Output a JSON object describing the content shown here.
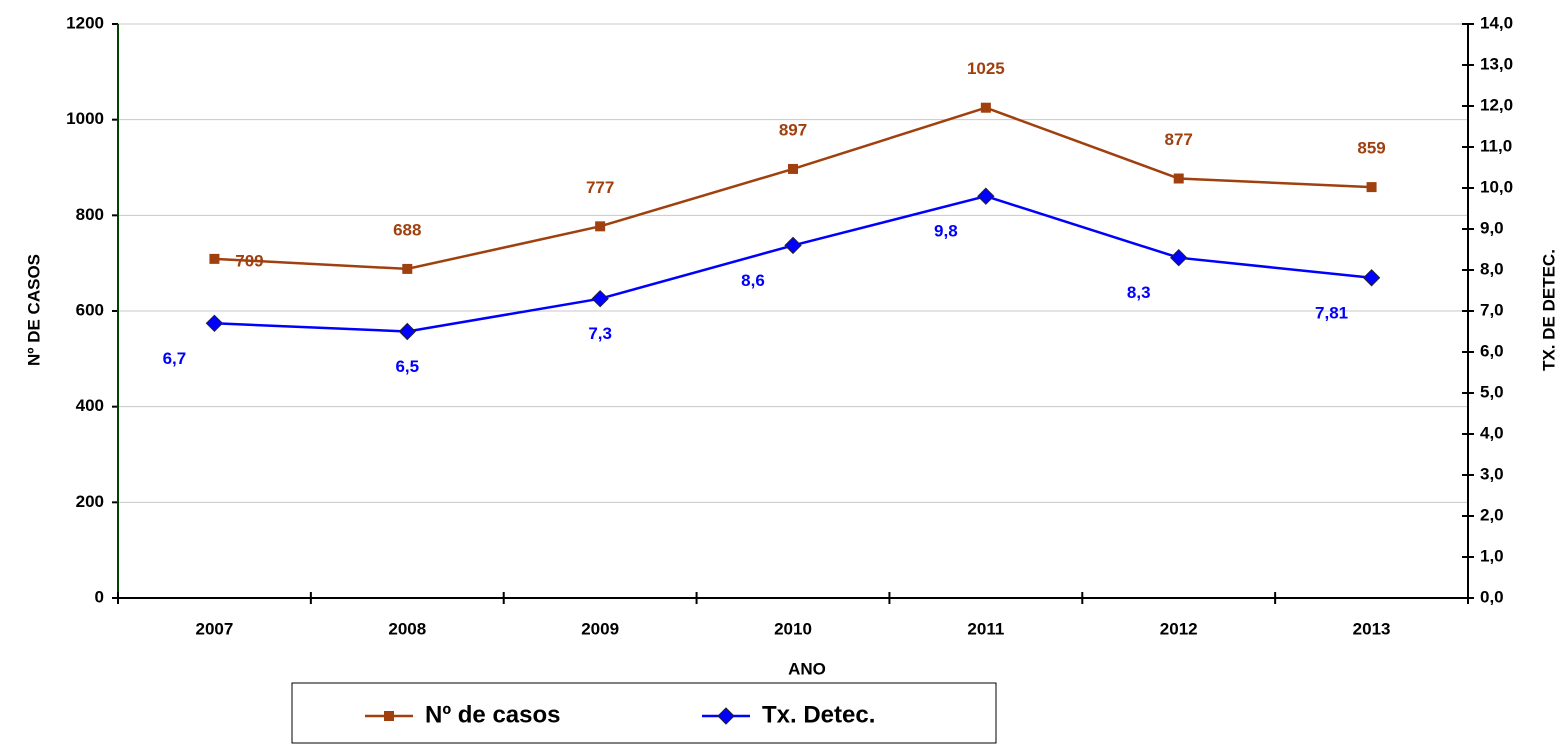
{
  "chart_data": {
    "type": "line",
    "x_label": "ANO",
    "y_label": "Nº DE CASOS",
    "y2_label": "TX. DE DETEC.",
    "categories": [
      "2007",
      "2008",
      "2009",
      "2010",
      "2011",
      "2012",
      "2013"
    ],
    "series": [
      {
        "name": "Nº de casos",
        "color": "#a0400f",
        "values": [
          709,
          688,
          777,
          897,
          1025,
          877,
          859
        ]
      },
      {
        "name": "Tx. Detec.",
        "color": "#0000ff",
        "axis": "y2",
        "values": [
          6.7,
          6.5,
          7.3,
          8.6,
          9.8,
          8.3,
          7.81
        ],
        "value_labels": [
          "6,7",
          "6,5",
          "7,3",
          "8,6",
          "9,8",
          "8,3",
          "7,81"
        ]
      }
    ],
    "ylim": [
      0,
      1200
    ],
    "yticks": [
      0,
      200,
      400,
      600,
      800,
      1000,
      1200
    ],
    "y2lim": [
      0,
      14
    ],
    "y2ticks": [
      {
        "value": 0,
        "label": "0,0"
      },
      {
        "value": 1,
        "label": "1,0"
      },
      {
        "value": 2,
        "label": "2,0"
      },
      {
        "value": 3,
        "label": "3,0"
      },
      {
        "value": 4,
        "label": "4,0"
      },
      {
        "value": 5,
        "label": "5,0"
      },
      {
        "value": 6,
        "label": "6,0"
      },
      {
        "value": 7,
        "label": "7,0"
      },
      {
        "value": 8,
        "label": "8,0"
      },
      {
        "value": 9,
        "label": "9,0"
      },
      {
        "value": 10,
        "label": "10,0"
      },
      {
        "value": 11,
        "label": "11,0"
      },
      {
        "value": 12,
        "label": "12,0"
      },
      {
        "value": 13,
        "label": "13,0"
      },
      {
        "value": 14,
        "label": "14,0"
      }
    ],
    "grid": true,
    "legend": "bottom"
  }
}
